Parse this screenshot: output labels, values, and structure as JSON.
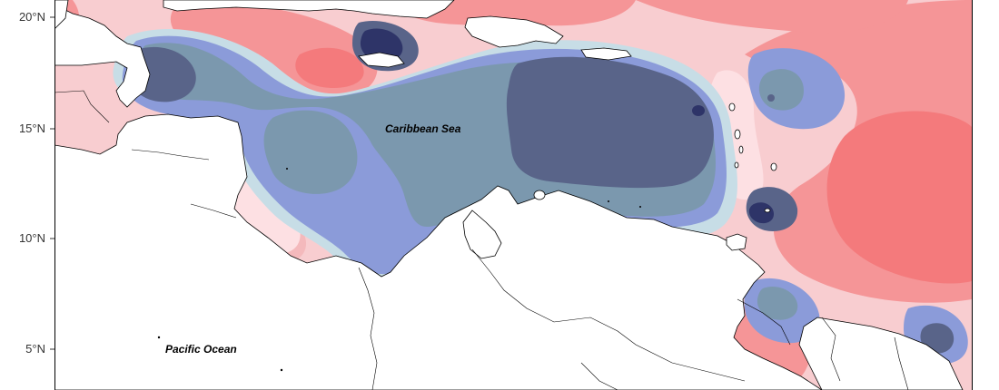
{
  "map": {
    "y_axis_ticks": [
      "20°N",
      "15°N",
      "10°N",
      "5°N"
    ],
    "labels": {
      "caribbean": "Caribbean Sea",
      "pacific": "Pacific Ocean"
    },
    "colors": {
      "deep_blue": "#2e3468",
      "navy": "#596489",
      "slate": "#7b98ae",
      "periwinkle": "#8b9bd9",
      "light_blue": "#c7dde6",
      "pale_pink": "#fde0e3",
      "pink": "#f4b9bc",
      "salmon": "#f59597",
      "red": "#f47a7c",
      "land": "#ffffff",
      "coastline": "#000000"
    }
  }
}
